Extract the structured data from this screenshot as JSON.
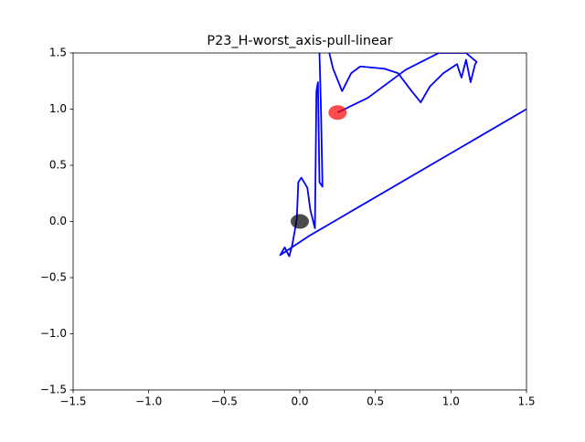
{
  "chart_data": {
    "type": "line",
    "title": "P23_H-worst_axis-pull-linear",
    "xlim": [
      -1.5,
      1.5
    ],
    "ylim": [
      -1.5,
      1.5
    ],
    "xticks": [
      {
        "value": -1.5,
        "label": "−1.5"
      },
      {
        "value": -1.0,
        "label": "−1.0"
      },
      {
        "value": -0.5,
        "label": "−0.5"
      },
      {
        "value": 0,
        "label": "0.0"
      },
      0.5,
      {
        "value": 1.0,
        "label": "1.0"
      },
      1.5
    ],
    "yticks": [
      {
        "value": -1.5,
        "label": "−1.5"
      },
      {
        "value": -1.0,
        "label": "−1.0"
      },
      {
        "value": -0.5,
        "label": "−0.5"
      },
      {
        "value": 0,
        "label": "0.0"
      },
      0.5,
      {
        "value": 1.0,
        "label": "1.0"
      },
      1.5
    ],
    "grid": false,
    "series": [
      {
        "color": "#0000ff",
        "x": [
          1.5,
          0.06,
          -0.13,
          -0.1,
          -0.07,
          -0.05,
          -0.02,
          -0.01,
          0.01,
          0.05,
          0.07,
          0.1,
          0.11,
          0.12,
          0.13,
          0.15,
          0.14,
          0.13,
          0.16,
          0.22,
          0.28,
          0.34,
          0.4,
          0.56,
          0.65,
          0.74,
          0.8,
          0.86,
          0.95,
          1.04,
          1.07,
          1.1,
          1.13,
          1.16,
          1.17,
          1.1,
          0.92,
          0.7,
          0.45,
          0.25
        ],
        "y": [
          1.0,
          -0.13,
          -0.3,
          -0.23,
          -0.31,
          -0.21,
          0.02,
          0.35,
          0.39,
          0.3,
          0.1,
          -0.06,
          1.16,
          1.24,
          0.35,
          0.31,
          1.0,
          1.5,
          1.7,
          1.36,
          1.16,
          1.32,
          1.38,
          1.36,
          1.32,
          1.16,
          1.06,
          1.2,
          1.32,
          1.4,
          1.28,
          1.44,
          1.24,
          1.4,
          1.42,
          1.5,
          1.5,
          1.35,
          1.1,
          0.97
        ]
      }
    ],
    "markers": [
      {
        "x": 0,
        "y": 0,
        "color": "#000000"
      },
      {
        "x": 0.25,
        "y": 0.97,
        "color": "#ff0000"
      }
    ]
  }
}
